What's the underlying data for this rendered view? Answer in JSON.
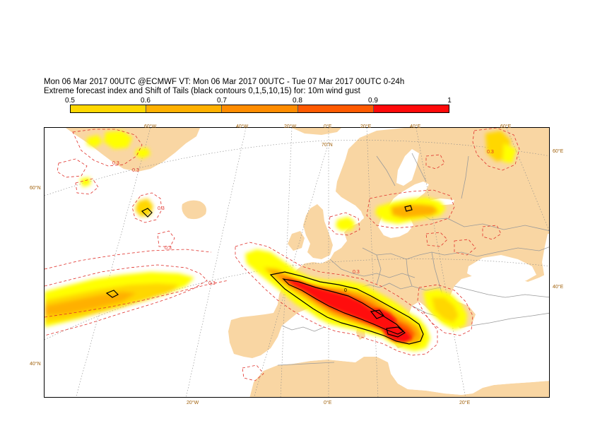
{
  "header": {
    "title_line1": "Mon 06 Mar 2017 00UTC @ECMWF VT: Mon 06 Mar 2017 00UTC - Tue 07 Mar 2017 00UTC  0-24h",
    "title_line2": "Extreme forecast index and Shift of Tails (black contours 0,1,5,10,15) for: 10m wind gust"
  },
  "colorbar": {
    "labels": [
      "0.5",
      "0.6",
      "0.7",
      "0.8",
      "0.9",
      "1"
    ],
    "colors": [
      "#ffff00",
      "#ffd700",
      "#ffb000",
      "#ff8c00",
      "#ff5a00",
      "#ff0a0a"
    ]
  },
  "map": {
    "land_color": "#f9d6a3",
    "sea_color": "#ffffff",
    "border_color": "#9a9a9a",
    "efi_contour_color": "#e0302a",
    "sot_contour_color": "#000000",
    "efi_contour_label": "0.3",
    "sot_contour_label": "0",
    "graticule_top": [
      "60°W",
      "40°W",
      "20°W",
      "0°E",
      "20°E",
      "40°E",
      "60°E"
    ],
    "graticule_bottom": [
      "20°W",
      "0°E",
      "20°E"
    ],
    "graticule_left": [
      "60°N",
      "40°N"
    ],
    "graticule_right": [
      "60°E",
      "40°E"
    ],
    "graticule_inner": [
      "70°N"
    ]
  }
}
